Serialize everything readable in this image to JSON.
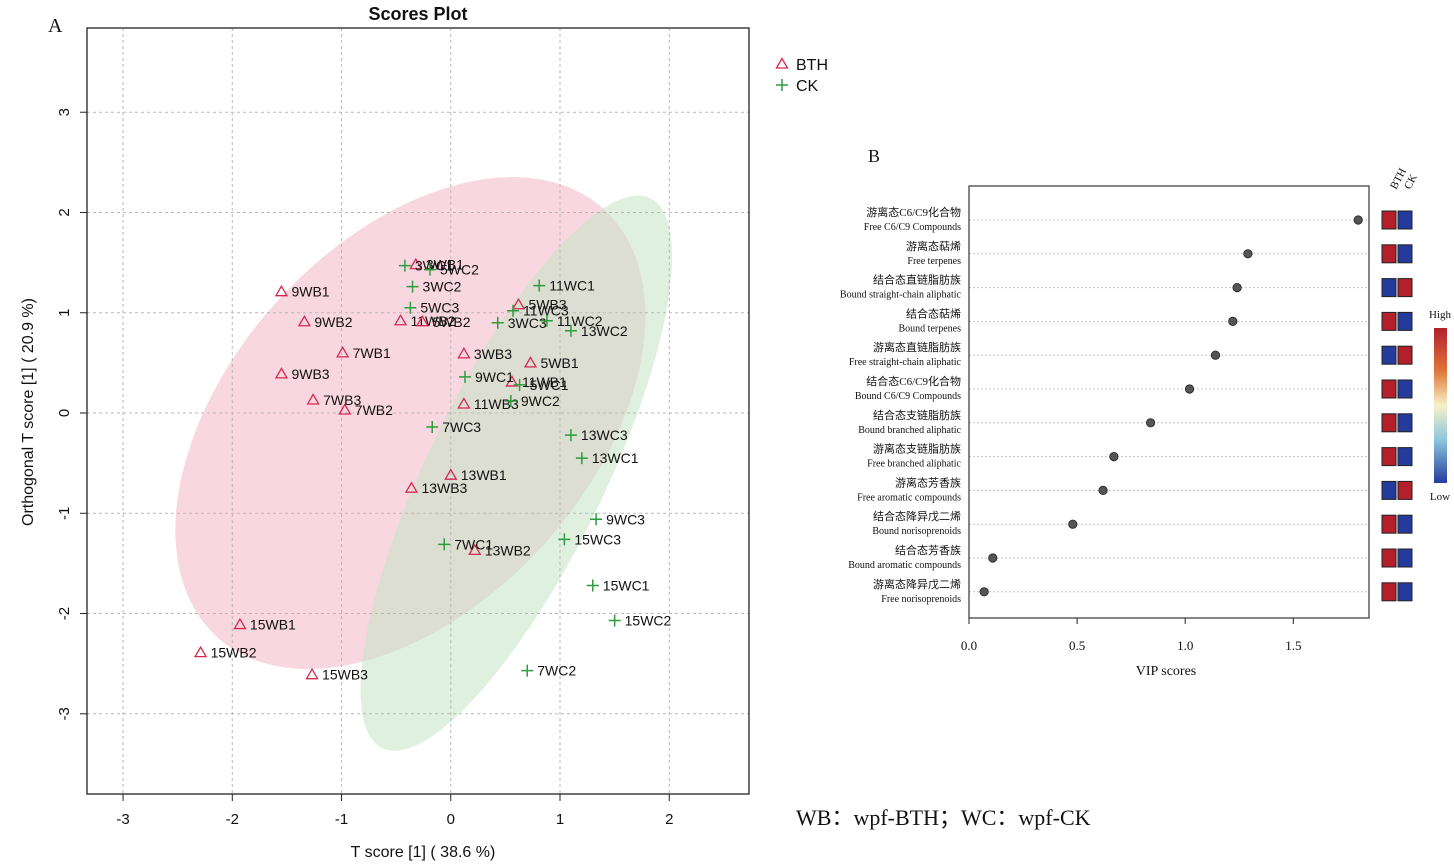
{
  "panel_a_letter": "A",
  "panel_b_letter": "B",
  "caption": "WB：wpf-BTH；WC：wpf-CK",
  "colors": {
    "bth": "#d42a50",
    "ck": "#2e9c3e",
    "bth_ellipse": "#f4b6c6",
    "ck_ellipse": "#c4e3c4",
    "heat_high": "#b3202b",
    "heat_low": "#253b9c"
  },
  "chart_data": [
    {
      "type": "scatter",
      "title": "Scores Plot",
      "xlabel": "T score [1] ( 38.6 %)",
      "ylabel": "Orthogonal T score [1] ( 20.9 %)",
      "xlim": [
        -3.33,
        2.73
      ],
      "ylim": [
        -3.8,
        3.84
      ],
      "xticks": [
        -3,
        -2,
        -1,
        0,
        1,
        2
      ],
      "yticks": [
        -3,
        -2,
        -1,
        0,
        1,
        2,
        3
      ],
      "grid": true,
      "legend_position": "outside-top-right",
      "ellipses": [
        {
          "series": "BTH",
          "center": [
            -0.37,
            -0.1
          ],
          "semi_axes": [
            2.64,
            1.8
          ],
          "angle_deg": -48
        },
        {
          "series": "CK",
          "center": [
            0.6,
            -0.6
          ],
          "semi_axes": [
            2.8,
            0.88
          ],
          "angle_deg": -64
        }
      ],
      "series": [
        {
          "name": "BTH",
          "marker": "triangle",
          "points": [
            {
              "label": "3WB1",
              "x": -0.32,
              "y": 1.48
            },
            {
              "label": "9WB1",
              "x": -1.55,
              "y": 1.21
            },
            {
              "label": "9WB2",
              "x": -1.34,
              "y": 0.91
            },
            {
              "label": "11WB2",
              "x": -0.46,
              "y": 0.92
            },
            {
              "label": "5WB2",
              "x": -0.26,
              "y": 0.91
            },
            {
              "label": "5WB3",
              "x": 0.62,
              "y": 1.08
            },
            {
              "label": "7WB1",
              "x": -0.99,
              "y": 0.6
            },
            {
              "label": "3WB3",
              "x": 0.12,
              "y": 0.59
            },
            {
              "label": "5WB1",
              "x": 0.73,
              "y": 0.5
            },
            {
              "label": "9WB3",
              "x": -1.55,
              "y": 0.39
            },
            {
              "label": "11WB1",
              "x": 0.56,
              "y": 0.31
            },
            {
              "label": "7WB3",
              "x": -1.26,
              "y": 0.13
            },
            {
              "label": "11WB3",
              "x": 0.12,
              "y": 0.09
            },
            {
              "label": "7WB2",
              "x": -0.97,
              "y": 0.03
            },
            {
              "label": "13WB1",
              "x": 0.0,
              "y": -0.62
            },
            {
              "label": "13WB3",
              "x": -0.36,
              "y": -0.75
            },
            {
              "label": "13WB2",
              "x": 0.22,
              "y": -1.37
            },
            {
              "label": "15WB1",
              "x": -1.93,
              "y": -2.11
            },
            {
              "label": "15WB2",
              "x": -2.29,
              "y": -2.39
            },
            {
              "label": "15WB3",
              "x": -1.27,
              "y": -2.61
            }
          ]
        },
        {
          "name": "CK",
          "marker": "plus",
          "points": [
            {
              "label": "3WC1",
              "x": -0.42,
              "y": 1.47
            },
            {
              "label": "5WC2",
              "x": -0.19,
              "y": 1.43
            },
            {
              "label": "3WC2",
              "x": -0.35,
              "y": 1.26
            },
            {
              "label": "11WC1",
              "x": 0.81,
              "y": 1.27
            },
            {
              "label": "5WC3",
              "x": -0.37,
              "y": 1.05
            },
            {
              "label": "11WC3",
              "x": 0.57,
              "y": 1.02
            },
            {
              "label": "3WC3",
              "x": 0.43,
              "y": 0.9
            },
            {
              "label": "11WC2",
              "x": 0.88,
              "y": 0.92
            },
            {
              "label": "13WC2",
              "x": 1.1,
              "y": 0.82
            },
            {
              "label": "9WC1",
              "x": 0.13,
              "y": 0.36
            },
            {
              "label": "5WC1",
              "x": 0.63,
              "y": 0.28
            },
            {
              "label": "9WC2",
              "x": 0.55,
              "y": 0.12
            },
            {
              "label": "7WC3",
              "x": -0.17,
              "y": -0.14
            },
            {
              "label": "13WC3",
              "x": 1.1,
              "y": -0.22
            },
            {
              "label": "13WC1",
              "x": 1.2,
              "y": -0.45
            },
            {
              "label": "9WC3",
              "x": 1.33,
              "y": -1.06
            },
            {
              "label": "15WC3",
              "x": 1.04,
              "y": -1.26
            },
            {
              "label": "7WC1",
              "x": -0.06,
              "y": -1.31
            },
            {
              "label": "15WC1",
              "x": 1.3,
              "y": -1.72
            },
            {
              "label": "15WC2",
              "x": 1.5,
              "y": -2.07
            },
            {
              "label": "7WC2",
              "x": 0.7,
              "y": -2.57
            }
          ]
        }
      ]
    },
    {
      "type": "scatter",
      "xlabel": "VIP scores",
      "xlim": [
        0.0,
        1.85
      ],
      "xticks": [
        0.0,
        0.5,
        1.0,
        1.5
      ],
      "tick_labels": [
        "0.0",
        "0.5",
        "1.0",
        "1.5"
      ],
      "grid": true,
      "columns": [
        "BTH",
        "CK"
      ],
      "scale_labels": [
        "High",
        "Low"
      ],
      "items": [
        {
          "zh": "游离态C6/C9化合物",
          "en": "Free C6/C9 Compounds",
          "vip": 1.8,
          "bth": "high",
          "ck": "low"
        },
        {
          "zh": "游离态萜烯",
          "en": "Free terpenes",
          "vip": 1.29,
          "bth": "high",
          "ck": "low"
        },
        {
          "zh": "结合态直链脂肪族",
          "en": "Bound straight-chain aliphatic",
          "vip": 1.24,
          "bth": "low",
          "ck": "high"
        },
        {
          "zh": "结合态萜烯",
          "en": "Bound terpenes",
          "vip": 1.22,
          "bth": "high",
          "ck": "low"
        },
        {
          "zh": "游离态直链脂肪族",
          "en": "Free straight-chain aliphatic",
          "vip": 1.14,
          "bth": "low",
          "ck": "high"
        },
        {
          "zh": "结合态C6/C9化合物",
          "en": "Bound C6/C9 Compounds",
          "vip": 1.02,
          "bth": "high",
          "ck": "low"
        },
        {
          "zh": "结合态支链脂肪族",
          "en": "Bound branched aliphatic",
          "vip": 0.84,
          "bth": "high",
          "ck": "low"
        },
        {
          "zh": "游离态支链脂肪族",
          "en": "Free branched aliphatic",
          "vip": 0.67,
          "bth": "high",
          "ck": "low"
        },
        {
          "zh": "游离态芳香族",
          "en": "Free aromatic compounds",
          "vip": 0.62,
          "bth": "low",
          "ck": "high"
        },
        {
          "zh": "结合态降异戊二烯",
          "en": "Bound norisoprenoids",
          "vip": 0.48,
          "bth": "high",
          "ck": "low"
        },
        {
          "zh": "结合态芳香族",
          "en": "Bound aromatic compounds",
          "vip": 0.11,
          "bth": "high",
          "ck": "low"
        },
        {
          "zh": "游离态降异戊二烯",
          "en": "Free norisoprenoids",
          "vip": 0.07,
          "bth": "high",
          "ck": "low"
        }
      ]
    }
  ]
}
